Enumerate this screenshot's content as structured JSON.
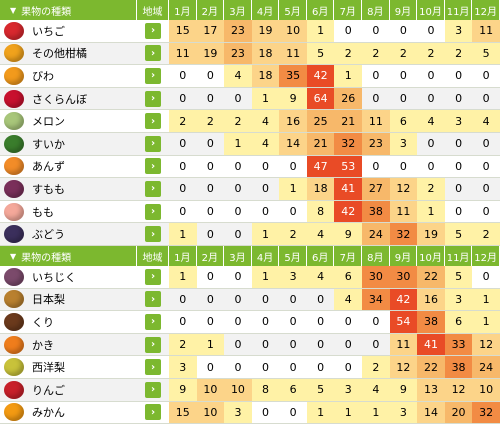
{
  "header": {
    "name_label": "果物の種類",
    "region_label": "地域",
    "months": [
      "1月",
      "2月",
      "3月",
      "4月",
      "5月",
      "6月",
      "7月",
      "8月",
      "9月",
      "10月",
      "11月",
      "12月"
    ]
  },
  "region_button_glyph": "›",
  "level_colors": [
    "#ffffff",
    "#fff2a6",
    "#fcd489",
    "#f7b86a",
    "#f28b44",
    "#e94b26"
  ],
  "chart_data": {
    "type": "heatmap",
    "columns": [
      "1月",
      "2月",
      "3月",
      "4月",
      "5月",
      "6月",
      "7月",
      "8月",
      "9月",
      "10月",
      "11月",
      "12月"
    ],
    "sections": [
      {
        "header": "果物の種類",
        "rows": [
          {
            "name": "いちご",
            "icon": "strawberry-icon",
            "color": "#d8282e",
            "values": [
              15,
              17,
              23,
              19,
              10,
              1,
              0,
              0,
              0,
              0,
              3,
              11
            ]
          },
          {
            "name": "その他柑橘",
            "icon": "citrus-icon",
            "color": "#f0a21c",
            "values": [
              11,
              19,
              23,
              18,
              11,
              5,
              2,
              2,
              2,
              2,
              2,
              5
            ]
          },
          {
            "name": "びわ",
            "icon": "loquat-icon",
            "color": "#f29a1c",
            "values": [
              0,
              0,
              4,
              18,
              35,
              42,
              1,
              0,
              0,
              0,
              0,
              0
            ]
          },
          {
            "name": "さくらんぼ",
            "icon": "cherry-icon",
            "color": "#c8102e",
            "values": [
              0,
              0,
              0,
              1,
              9,
              64,
              26,
              0,
              0,
              0,
              0,
              0
            ]
          },
          {
            "name": "メロン",
            "icon": "melon-icon",
            "color": "#a8c67a",
            "values": [
              2,
              2,
              2,
              4,
              16,
              25,
              21,
              11,
              6,
              4,
              3,
              4
            ]
          },
          {
            "name": "すいか",
            "icon": "watermelon-icon",
            "color": "#3a7d2c",
            "values": [
              0,
              0,
              1,
              4,
              14,
              21,
              32,
              23,
              3,
              0,
              0,
              0
            ]
          },
          {
            "name": "あんず",
            "icon": "apricot-icon",
            "color": "#f28c28",
            "values": [
              0,
              0,
              0,
              0,
              0,
              47,
              53,
              0,
              0,
              0,
              0,
              0
            ]
          },
          {
            "name": "すもも",
            "icon": "plum-icon",
            "color": "#7a2f5a",
            "values": [
              0,
              0,
              0,
              0,
              1,
              18,
              41,
              27,
              12,
              2,
              0,
              0
            ]
          },
          {
            "name": "もも",
            "icon": "peach-icon",
            "color": "#f4a89a",
            "values": [
              0,
              0,
              0,
              0,
              0,
              8,
              42,
              38,
              11,
              1,
              0,
              0
            ]
          },
          {
            "name": "ぶどう",
            "icon": "grape-icon",
            "color": "#3b2f5c",
            "values": [
              1,
              0,
              0,
              1,
              2,
              4,
              9,
              24,
              32,
              19,
              5,
              2
            ]
          }
        ]
      },
      {
        "header": "果物の種類",
        "rows": [
          {
            "name": "いちじく",
            "icon": "fig-icon",
            "color": "#7b4a6b",
            "values": [
              1,
              0,
              0,
              1,
              3,
              4,
              6,
              30,
              30,
              22,
              5,
              0
            ]
          },
          {
            "name": "日本梨",
            "icon": "japanese-pear-icon",
            "color": "#b9802f",
            "values": [
              0,
              0,
              0,
              0,
              0,
              0,
              4,
              34,
              42,
              16,
              3,
              1
            ]
          },
          {
            "name": "くり",
            "icon": "chestnut-icon",
            "color": "#6b3a1c",
            "values": [
              0,
              0,
              0,
              0,
              0,
              0,
              0,
              0,
              54,
              38,
              6,
              1
            ]
          },
          {
            "name": "かき",
            "icon": "persimmon-icon",
            "color": "#ef7d1c",
            "values": [
              2,
              1,
              0,
              0,
              0,
              0,
              0,
              0,
              11,
              41,
              33,
              12
            ]
          },
          {
            "name": "西洋梨",
            "icon": "pear-icon",
            "color": "#c8c23a",
            "values": [
              3,
              0,
              0,
              0,
              0,
              0,
              0,
              2,
              12,
              22,
              38,
              24
            ]
          },
          {
            "name": "りんご",
            "icon": "apple-icon",
            "color": "#c8202a",
            "values": [
              9,
              10,
              10,
              8,
              6,
              5,
              3,
              4,
              9,
              13,
              12,
              10
            ]
          },
          {
            "name": "みかん",
            "icon": "mandarin-icon",
            "color": "#f39a12",
            "values": [
              15,
              10,
              3,
              0,
              0,
              1,
              1,
              1,
              3,
              14,
              20,
              32
            ]
          }
        ]
      }
    ]
  }
}
